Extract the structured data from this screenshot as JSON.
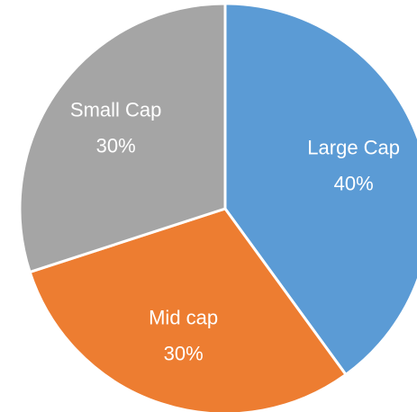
{
  "chart_data": {
    "type": "pie",
    "categories": [
      "Large Cap",
      "Mid cap",
      "Small Cap"
    ],
    "values": [
      40,
      30,
      30
    ],
    "value_labels": [
      "40%",
      "30%",
      "30%"
    ],
    "colors": [
      "#5b9bd5",
      "#ed7d31",
      "#a5a5a5"
    ]
  }
}
